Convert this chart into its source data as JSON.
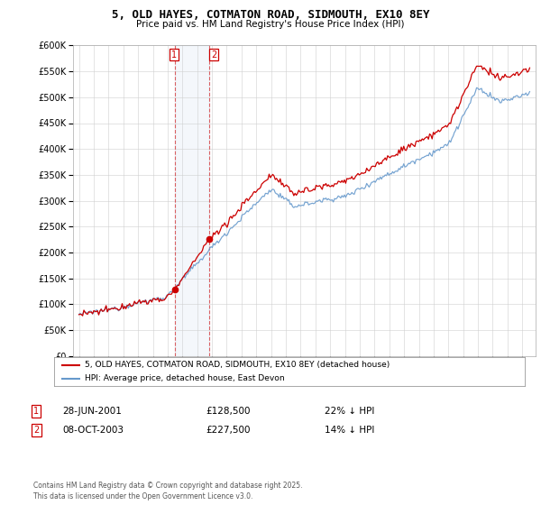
{
  "title": "5, OLD HAYES, COTMATON ROAD, SIDMOUTH, EX10 8EY",
  "subtitle": "Price paid vs. HM Land Registry's House Price Index (HPI)",
  "legend_line1": "5, OLD HAYES, COTMATON ROAD, SIDMOUTH, EX10 8EY (detached house)",
  "legend_line2": "HPI: Average price, detached house, East Devon",
  "sale1_date": "28-JUN-2001",
  "sale1_price": 128500,
  "sale1_label": "22% ↓ HPI",
  "sale2_date": "08-OCT-2003",
  "sale2_price": 227500,
  "sale2_label": "14% ↓ HPI",
  "footnote": "Contains HM Land Registry data © Crown copyright and database right 2025.\nThis data is licensed under the Open Government Licence v3.0.",
  "hpi_color": "#6699cc",
  "price_color": "#cc0000",
  "background_color": "#ffffff",
  "ylim_max": 600000,
  "ytick_step": 50000
}
